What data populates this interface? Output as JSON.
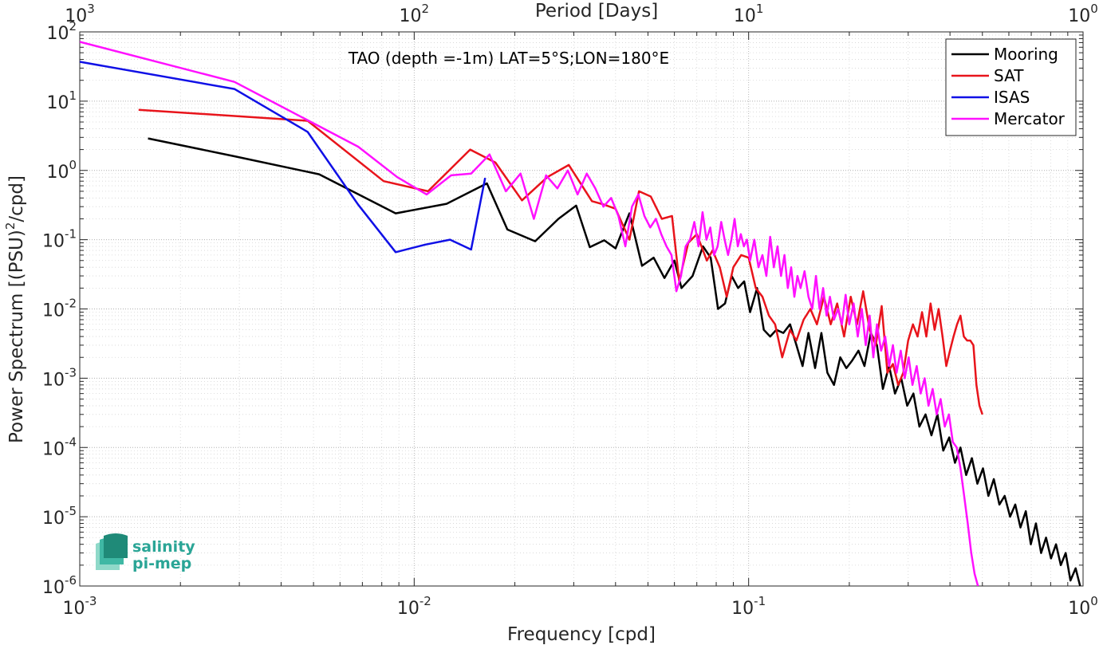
{
  "chart_data": {
    "type": "line",
    "title": "TAO (depth =-1m) LAT=5°S;LON=180°E",
    "xlabel": "Frequency [cpd]",
    "ylabel_parts": [
      "Power Spectrum [(PSU)",
      "2",
      "/cpd]"
    ],
    "top_xlabel": "Period [Days]",
    "x_scale": "log",
    "y_scale": "log",
    "xlim": [
      0.001,
      1
    ],
    "ylim": [
      1e-06,
      100
    ],
    "grid": true,
    "legend_position": "top-right",
    "x_ticks": [
      {
        "value": 0.001,
        "base": "10",
        "exp": "-3"
      },
      {
        "value": 0.01,
        "base": "10",
        "exp": "-2"
      },
      {
        "value": 0.1,
        "base": "10",
        "exp": "-1"
      },
      {
        "value": 1,
        "base": "10",
        "exp": "0"
      }
    ],
    "y_ticks": [
      {
        "value": 100,
        "base": "10",
        "exp": "2"
      },
      {
        "value": 10,
        "base": "10",
        "exp": "1"
      },
      {
        "value": 1,
        "base": "10",
        "exp": "0"
      },
      {
        "value": 0.1,
        "base": "10",
        "exp": "-1"
      },
      {
        "value": 0.01,
        "base": "10",
        "exp": "-2"
      },
      {
        "value": 0.001,
        "base": "10",
        "exp": "-3"
      },
      {
        "value": 0.0001,
        "base": "10",
        "exp": "-4"
      },
      {
        "value": 1e-05,
        "base": "10",
        "exp": "-5"
      },
      {
        "value": 1e-06,
        "base": "10",
        "exp": "-6"
      }
    ],
    "top_ticks": [
      {
        "value": 0.001,
        "base": "10",
        "exp": "3"
      },
      {
        "value": 0.01,
        "base": "10",
        "exp": "2"
      },
      {
        "value": 0.1,
        "base": "10",
        "exp": "1"
      },
      {
        "value": 1,
        "base": "10",
        "exp": "0"
      }
    ],
    "series": [
      {
        "name": "Mooring",
        "color": "#000000",
        "points": [
          [
            0.0016,
            2.9
          ],
          [
            0.0029,
            1.6
          ],
          [
            0.0052,
            0.88
          ],
          [
            0.0088,
            0.24
          ],
          [
            0.0125,
            0.33
          ],
          [
            0.0165,
            0.65
          ],
          [
            0.019,
            0.14
          ],
          [
            0.023,
            0.095
          ],
          [
            0.027,
            0.2
          ],
          [
            0.0305,
            0.31
          ],
          [
            0.0335,
            0.078
          ],
          [
            0.037,
            0.098
          ],
          [
            0.04,
            0.075
          ],
          [
            0.044,
            0.24
          ],
          [
            0.048,
            0.042
          ],
          [
            0.052,
            0.055
          ],
          [
            0.056,
            0.028
          ],
          [
            0.06,
            0.05
          ],
          [
            0.063,
            0.02
          ],
          [
            0.068,
            0.03
          ],
          [
            0.073,
            0.08
          ],
          [
            0.077,
            0.055
          ],
          [
            0.081,
            0.01
          ],
          [
            0.085,
            0.012
          ],
          [
            0.089,
            0.03
          ],
          [
            0.093,
            0.02
          ],
          [
            0.097,
            0.025
          ],
          [
            0.101,
            0.009
          ],
          [
            0.106,
            0.02
          ],
          [
            0.111,
            0.005
          ],
          [
            0.116,
            0.004
          ],
          [
            0.121,
            0.005
          ],
          [
            0.127,
            0.0045
          ],
          [
            0.133,
            0.006
          ],
          [
            0.139,
            0.003
          ],
          [
            0.145,
            0.0015
          ],
          [
            0.151,
            0.0045
          ],
          [
            0.158,
            0.0014
          ],
          [
            0.165,
            0.0045
          ],
          [
            0.172,
            0.0012
          ],
          [
            0.18,
            0.0008
          ],
          [
            0.188,
            0.002
          ],
          [
            0.196,
            0.0014
          ],
          [
            0.204,
            0.0018
          ],
          [
            0.213,
            0.0025
          ],
          [
            0.222,
            0.0015
          ],
          [
            0.232,
            0.0045
          ],
          [
            0.242,
            0.003
          ],
          [
            0.252,
            0.0007
          ],
          [
            0.263,
            0.0015
          ],
          [
            0.274,
            0.0006
          ],
          [
            0.286,
            0.001
          ],
          [
            0.298,
            0.0004
          ],
          [
            0.311,
            0.0006
          ],
          [
            0.324,
            0.0002
          ],
          [
            0.338,
            0.0003
          ],
          [
            0.352,
            0.00015
          ],
          [
            0.367,
            0.0003
          ],
          [
            0.382,
            9e-05
          ],
          [
            0.398,
            0.00014
          ],
          [
            0.414,
            6e-05
          ],
          [
            0.43,
            0.0001
          ],
          [
            0.447,
            4e-05
          ],
          [
            0.465,
            7e-05
          ],
          [
            0.483,
            3e-05
          ],
          [
            0.502,
            5e-05
          ],
          [
            0.521,
            2e-05
          ],
          [
            0.541,
            3.5e-05
          ],
          [
            0.562,
            1.5e-05
          ],
          [
            0.583,
            2e-05
          ],
          [
            0.605,
            1e-05
          ],
          [
            0.627,
            1.5e-05
          ],
          [
            0.65,
            7e-06
          ],
          [
            0.674,
            1.2e-05
          ],
          [
            0.698,
            4e-06
          ],
          [
            0.723,
            8e-06
          ],
          [
            0.749,
            3e-06
          ],
          [
            0.775,
            5e-06
          ],
          [
            0.802,
            2.5e-06
          ],
          [
            0.83,
            4e-06
          ],
          [
            0.858,
            2e-06
          ],
          [
            0.887,
            3e-06
          ],
          [
            0.917,
            1.2e-06
          ],
          [
            0.95,
            1.8e-06
          ],
          [
            0.98,
            1e-06
          ]
        ]
      },
      {
        "name": "SAT",
        "color": "#e8141b",
        "points": [
          [
            0.0015,
            7.5
          ],
          [
            0.0048,
            5.2
          ],
          [
            0.0081,
            0.7
          ],
          [
            0.011,
            0.5
          ],
          [
            0.0147,
            2.0
          ],
          [
            0.0175,
            1.3
          ],
          [
            0.021,
            0.37
          ],
          [
            0.025,
            0.8
          ],
          [
            0.029,
            1.2
          ],
          [
            0.034,
            0.36
          ],
          [
            0.037,
            0.32
          ],
          [
            0.04,
            0.28
          ],
          [
            0.044,
            0.1
          ],
          [
            0.047,
            0.5
          ],
          [
            0.051,
            0.42
          ],
          [
            0.055,
            0.2
          ],
          [
            0.059,
            0.22
          ],
          [
            0.062,
            0.025
          ],
          [
            0.066,
            0.09
          ],
          [
            0.07,
            0.12
          ],
          [
            0.075,
            0.05
          ],
          [
            0.078,
            0.07
          ],
          [
            0.082,
            0.04
          ],
          [
            0.086,
            0.015
          ],
          [
            0.09,
            0.04
          ],
          [
            0.095,
            0.06
          ],
          [
            0.1,
            0.055
          ],
          [
            0.105,
            0.02
          ],
          [
            0.11,
            0.015
          ],
          [
            0.115,
            0.008
          ],
          [
            0.12,
            0.006
          ],
          [
            0.126,
            0.002
          ],
          [
            0.133,
            0.005
          ],
          [
            0.139,
            0.0035
          ],
          [
            0.146,
            0.007
          ],
          [
            0.153,
            0.01
          ],
          [
            0.16,
            0.006
          ],
          [
            0.168,
            0.015
          ],
          [
            0.176,
            0.006
          ],
          [
            0.184,
            0.012
          ],
          [
            0.193,
            0.004
          ],
          [
            0.202,
            0.015
          ],
          [
            0.211,
            0.006
          ],
          [
            0.22,
            0.018
          ],
          [
            0.23,
            0.005
          ],
          [
            0.24,
            0.003
          ],
          [
            0.25,
            0.011
          ],
          [
            0.26,
            0.0012
          ],
          [
            0.27,
            0.0016
          ],
          [
            0.28,
            0.0008
          ],
          [
            0.29,
            0.0012
          ],
          [
            0.3,
            0.0035
          ],
          [
            0.31,
            0.006
          ],
          [
            0.32,
            0.004
          ],
          [
            0.33,
            0.009
          ],
          [
            0.34,
            0.004
          ],
          [
            0.35,
            0.012
          ],
          [
            0.36,
            0.005
          ],
          [
            0.37,
            0.01
          ],
          [
            0.38,
            0.004
          ],
          [
            0.39,
            0.0015
          ],
          [
            0.4,
            0.0025
          ],
          [
            0.41,
            0.004
          ],
          [
            0.42,
            0.006
          ],
          [
            0.43,
            0.008
          ],
          [
            0.44,
            0.004
          ],
          [
            0.45,
            0.0035
          ],
          [
            0.46,
            0.0035
          ],
          [
            0.47,
            0.003
          ],
          [
            0.48,
            0.0008
          ],
          [
            0.49,
            0.0004
          ],
          [
            0.5,
            0.0003
          ]
        ]
      },
      {
        "name": "ISAS",
        "color": "#1010e6",
        "points": [
          [
            0.001,
            37
          ],
          [
            0.0029,
            15
          ],
          [
            0.0048,
            3.6
          ],
          [
            0.0068,
            0.32
          ],
          [
            0.0088,
            0.066
          ],
          [
            0.0108,
            0.085
          ],
          [
            0.0128,
            0.1
          ],
          [
            0.0148,
            0.072
          ],
          [
            0.0163,
            0.78
          ]
        ]
      },
      {
        "name": "Mercator",
        "color": "#ff11ff",
        "points": [
          [
            0.001,
            72
          ],
          [
            0.0029,
            19
          ],
          [
            0.0068,
            2.2
          ],
          [
            0.0089,
            0.8
          ],
          [
            0.0109,
            0.45
          ],
          [
            0.0129,
            0.85
          ],
          [
            0.0148,
            0.9
          ],
          [
            0.0168,
            1.7
          ],
          [
            0.0188,
            0.5
          ],
          [
            0.0208,
            0.9
          ],
          [
            0.0228,
            0.2
          ],
          [
            0.0248,
            0.85
          ],
          [
            0.0268,
            0.55
          ],
          [
            0.0288,
            1.0
          ],
          [
            0.0308,
            0.45
          ],
          [
            0.0328,
            0.9
          ],
          [
            0.0348,
            0.55
          ],
          [
            0.0368,
            0.3
          ],
          [
            0.0388,
            0.4
          ],
          [
            0.0408,
            0.22
          ],
          [
            0.0428,
            0.08
          ],
          [
            0.0448,
            0.3
          ],
          [
            0.0468,
            0.45
          ],
          [
            0.0488,
            0.22
          ],
          [
            0.0508,
            0.15
          ],
          [
            0.0528,
            0.2
          ],
          [
            0.0548,
            0.12
          ],
          [
            0.0568,
            0.08
          ],
          [
            0.0588,
            0.06
          ],
          [
            0.0608,
            0.018
          ],
          [
            0.0628,
            0.03
          ],
          [
            0.0648,
            0.08
          ],
          [
            0.0668,
            0.1
          ],
          [
            0.0688,
            0.18
          ],
          [
            0.0708,
            0.08
          ],
          [
            0.0728,
            0.25
          ],
          [
            0.0748,
            0.1
          ],
          [
            0.0768,
            0.15
          ],
          [
            0.0788,
            0.06
          ],
          [
            0.0808,
            0.08
          ],
          [
            0.0828,
            0.18
          ],
          [
            0.0848,
            0.1
          ],
          [
            0.0868,
            0.06
          ],
          [
            0.0888,
            0.1
          ],
          [
            0.0908,
            0.2
          ],
          [
            0.0928,
            0.08
          ],
          [
            0.0948,
            0.12
          ],
          [
            0.0968,
            0.08
          ],
          [
            0.0988,
            0.1
          ],
          [
            0.101,
            0.05
          ],
          [
            0.104,
            0.1
          ],
          [
            0.107,
            0.04
          ],
          [
            0.11,
            0.06
          ],
          [
            0.113,
            0.03
          ],
          [
            0.116,
            0.11
          ],
          [
            0.119,
            0.04
          ],
          [
            0.122,
            0.08
          ],
          [
            0.125,
            0.03
          ],
          [
            0.128,
            0.06
          ],
          [
            0.131,
            0.02
          ],
          [
            0.134,
            0.04
          ],
          [
            0.137,
            0.015
          ],
          [
            0.14,
            0.03
          ],
          [
            0.143,
            0.02
          ],
          [
            0.147,
            0.035
          ],
          [
            0.151,
            0.015
          ],
          [
            0.155,
            0.01
          ],
          [
            0.159,
            0.03
          ],
          [
            0.163,
            0.01
          ],
          [
            0.167,
            0.02
          ],
          [
            0.171,
            0.008
          ],
          [
            0.175,
            0.015
          ],
          [
            0.18,
            0.007
          ],
          [
            0.185,
            0.01
          ],
          [
            0.19,
            0.006
          ],
          [
            0.195,
            0.016
          ],
          [
            0.2,
            0.006
          ],
          [
            0.206,
            0.012
          ],
          [
            0.212,
            0.004
          ],
          [
            0.218,
            0.01
          ],
          [
            0.224,
            0.003
          ],
          [
            0.23,
            0.008
          ],
          [
            0.236,
            0.002
          ],
          [
            0.242,
            0.006
          ],
          [
            0.249,
            0.0025
          ],
          [
            0.256,
            0.004
          ],
          [
            0.263,
            0.0015
          ],
          [
            0.27,
            0.003
          ],
          [
            0.277,
            0.0012
          ],
          [
            0.285,
            0.0025
          ],
          [
            0.293,
            0.001
          ],
          [
            0.301,
            0.002
          ],
          [
            0.309,
            0.0008
          ],
          [
            0.318,
            0.0015
          ],
          [
            0.327,
            0.0006
          ],
          [
            0.336,
            0.001
          ],
          [
            0.345,
            0.0004
          ],
          [
            0.355,
            0.0007
          ],
          [
            0.365,
            0.0003
          ],
          [
            0.375,
            0.0005
          ],
          [
            0.386,
            0.0002
          ],
          [
            0.397,
            0.0003
          ],
          [
            0.408,
            0.00012
          ],
          [
            0.419,
            0.0001
          ],
          [
            0.43,
            5e-05
          ],
          [
            0.441,
            2e-05
          ],
          [
            0.452,
            8e-06
          ],
          [
            0.463,
            3e-06
          ],
          [
            0.474,
            1.5e-06
          ],
          [
            0.485,
            1e-06
          ]
        ]
      }
    ]
  },
  "logo": {
    "line1": "salinity",
    "line2": "pi-mep",
    "colors": [
      "#1f8a78",
      "#3fb8a4",
      "#8fd9c9"
    ]
  }
}
